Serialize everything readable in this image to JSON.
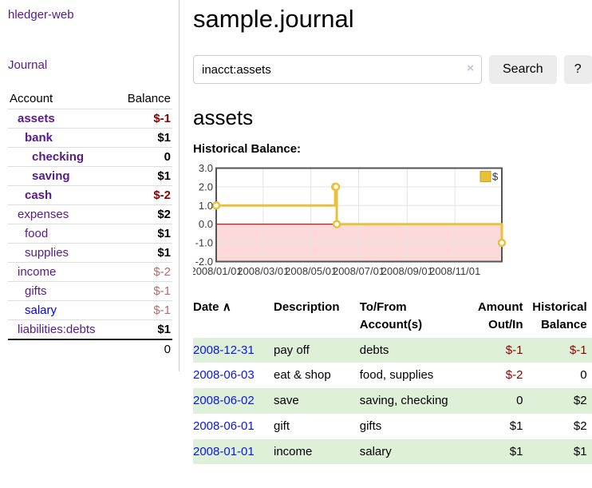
{
  "app": {
    "brand": "hledger-web",
    "nav_journal": "Journal"
  },
  "sidebar": {
    "accounts_header": {
      "account": "Account",
      "balance": "Balance"
    },
    "accounts": [
      {
        "name": "assets",
        "balance": "$-1",
        "indent": 1,
        "bold": true,
        "neg": true
      },
      {
        "name": "bank",
        "balance": "$1",
        "indent": 2,
        "bold": true
      },
      {
        "name": "checking",
        "balance": "0",
        "indent": 3,
        "bold": true
      },
      {
        "name": "saving",
        "balance": "$1",
        "indent": 3,
        "bold": true
      },
      {
        "name": "cash",
        "balance": "$-2",
        "indent": 2,
        "bold": true,
        "neg": true
      },
      {
        "name": "expenses",
        "balance": "$2",
        "indent": 1
      },
      {
        "name": "food",
        "balance": "$1",
        "indent": 2
      },
      {
        "name": "supplies",
        "balance": "$1",
        "indent": 2
      },
      {
        "name": "income",
        "balance": "$-2",
        "indent": 1,
        "negl": true
      },
      {
        "name": "gifts",
        "balance": "$-1",
        "indent": 2,
        "negl": true
      },
      {
        "name": "salary",
        "balance": "$-1",
        "indent": 2,
        "negl": true,
        "blue": true
      },
      {
        "name": "liabilities:debts",
        "balance": "$1",
        "indent": 1
      }
    ],
    "total": "0"
  },
  "header": {
    "title": "sample.journal"
  },
  "search": {
    "value": "inacct:assets",
    "clear_icon": "×",
    "button": "Search",
    "help_button": "?"
  },
  "account_page": {
    "title": "assets",
    "chart_label": "Historical Balance:"
  },
  "chart_data": {
    "type": "line",
    "title": "Historical Balance:",
    "legend": "$",
    "legend_position": "top-right",
    "grid": true,
    "steps": true,
    "ylim": [
      -2.0,
      3.0
    ],
    "y_ticks": [
      3.0,
      2.0,
      1.0,
      0.0,
      -1.0,
      -2.0
    ],
    "x_ticks": [
      {
        "day": 0,
        "label": "2008/01/01"
      },
      {
        "day": 60,
        "label": "2008/03/01"
      },
      {
        "day": 121,
        "label": "2008/05/01"
      },
      {
        "day": 182,
        "label": "2008/07/01"
      },
      {
        "day": 244,
        "label": "2008/09/01"
      },
      {
        "day": 305,
        "label": "2008/11/01"
      }
    ],
    "xlim_days": [
      0,
      365
    ],
    "series": [
      {
        "name": "$",
        "color": "#e8c03c",
        "points": [
          {
            "date": "2008-01-01",
            "day": 0,
            "value": 1
          },
          {
            "date": "2008-06-01",
            "day": 152,
            "value": 2
          },
          {
            "date": "2008-06-02",
            "day": 153,
            "value": 2
          },
          {
            "date": "2008-06-03",
            "day": 154,
            "value": 0
          },
          {
            "date": "2008-12-31",
            "day": 365,
            "value": -1
          }
        ]
      }
    ],
    "zero_line_color": "#a40000",
    "negative_region_color": "#fcdada",
    "grid_color": "#e3e3e3",
    "border_color": "#545454"
  },
  "register": {
    "sort_icon": "∧",
    "columns": [
      "Date",
      "Description",
      "To/From Account(s)",
      "Amount Out/In",
      "Historical Balance"
    ],
    "rows": [
      {
        "date": "2008-12-31",
        "description": "pay off",
        "accounts": "debts",
        "amount": "$-1",
        "balance": "$-1",
        "amount_neg": true,
        "balance_neg": true
      },
      {
        "date": "2008-06-03",
        "description": "eat & shop",
        "accounts": "food, supplies",
        "amount": "$-2",
        "balance": "0",
        "amount_neg": true
      },
      {
        "date": "2008-06-02",
        "description": "save",
        "accounts": "saving, checking",
        "amount": "0",
        "balance": "$2"
      },
      {
        "date": "2008-06-01",
        "description": "gift",
        "accounts": "gifts",
        "amount": "$1",
        "balance": "$2"
      },
      {
        "date": "2008-01-01",
        "description": "income",
        "accounts": "salary",
        "amount": "$1",
        "balance": "$1"
      }
    ]
  }
}
